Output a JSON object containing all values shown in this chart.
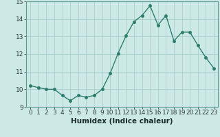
{
  "x": [
    0,
    1,
    2,
    3,
    4,
    5,
    6,
    7,
    8,
    9,
    10,
    11,
    12,
    13,
    14,
    15,
    16,
    17,
    18,
    19,
    20,
    21,
    22,
    23
  ],
  "y": [
    10.2,
    10.1,
    10.0,
    10.0,
    9.65,
    9.35,
    9.65,
    9.55,
    9.65,
    10.0,
    10.9,
    12.05,
    13.05,
    13.85,
    14.2,
    14.75,
    13.65,
    14.2,
    12.75,
    13.25,
    13.25,
    12.5,
    11.8,
    11.2
  ],
  "line_color": "#2d7d6e",
  "marker": "o",
  "marker_size": 2.5,
  "bg_color": "#cce9e5",
  "grid_color": "#aacfcc",
  "ylim": [
    9.0,
    15.0
  ],
  "xlim": [
    -0.5,
    23.5
  ],
  "yticks": [
    9,
    10,
    11,
    12,
    13,
    14,
    15
  ],
  "xticks": [
    0,
    1,
    2,
    3,
    4,
    5,
    6,
    7,
    8,
    9,
    10,
    11,
    12,
    13,
    14,
    15,
    16,
    17,
    18,
    19,
    20,
    21,
    22,
    23
  ],
  "xlabel": "Humidex (Indice chaleur)",
  "tick_fontsize": 6.5,
  "label_fontsize": 7.5
}
